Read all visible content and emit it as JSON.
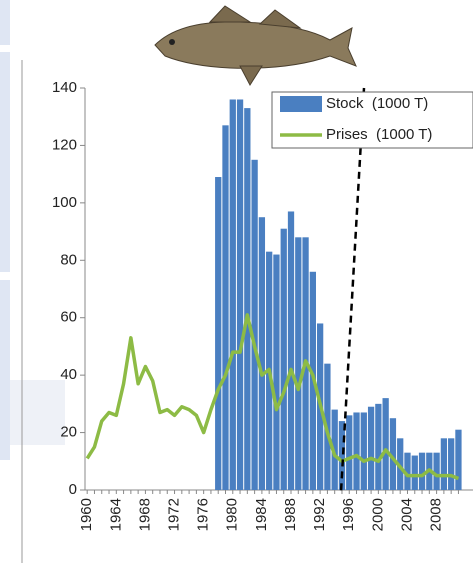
{
  "chart_data": {
    "type": "bar-line",
    "x": [
      1960,
      1961,
      1962,
      1963,
      1964,
      1965,
      1966,
      1967,
      1968,
      1969,
      1970,
      1971,
      1972,
      1973,
      1974,
      1975,
      1976,
      1977,
      1978,
      1979,
      1980,
      1981,
      1982,
      1983,
      1984,
      1985,
      1986,
      1987,
      1988,
      1989,
      1990,
      1991,
      1992,
      1993,
      1994,
      1995,
      1996,
      1997,
      1998,
      1999,
      2000,
      2001,
      2002,
      2003,
      2004,
      2005,
      2006,
      2007,
      2008,
      2009,
      2010,
      2011
    ],
    "series": [
      {
        "name": "Stock  (1000 T)",
        "type": "bar",
        "color": "#4a7fc1",
        "values": [
          null,
          null,
          null,
          null,
          null,
          null,
          null,
          null,
          null,
          null,
          null,
          null,
          null,
          null,
          null,
          null,
          null,
          null,
          109,
          127,
          136,
          136,
          133,
          115,
          95,
          83,
          82,
          91,
          97,
          88,
          88,
          76,
          58,
          44,
          28,
          24,
          26,
          27,
          27,
          29,
          30,
          32,
          25,
          18,
          13,
          12,
          13,
          13,
          13,
          18,
          18,
          21
        ]
      },
      {
        "name": "Prises  (1000 T)",
        "type": "line",
        "color": "#8dbb45",
        "values": [
          11,
          15,
          24,
          27,
          26,
          37,
          53,
          37,
          43,
          38,
          27,
          28,
          26,
          29,
          28,
          26,
          20,
          28,
          35,
          40,
          48,
          48,
          61,
          50,
          40,
          42,
          28,
          34,
          42,
          35,
          45,
          40,
          30,
          20,
          12,
          10,
          11,
          12,
          10,
          11,
          10,
          14,
          11,
          8,
          5,
          5,
          5,
          7,
          5,
          5,
          5,
          4
        ]
      }
    ],
    "xlim": [
      1959.7,
      2013
    ],
    "xticks": [
      1960,
      1964,
      1968,
      1972,
      1976,
      1980,
      1984,
      1988,
      1992,
      1996,
      2000,
      2004,
      2008
    ],
    "ylim": [
      0,
      140
    ],
    "yticks": [
      0,
      20,
      40,
      60,
      80,
      100,
      120,
      140
    ],
    "legend": "top-right"
  }
}
